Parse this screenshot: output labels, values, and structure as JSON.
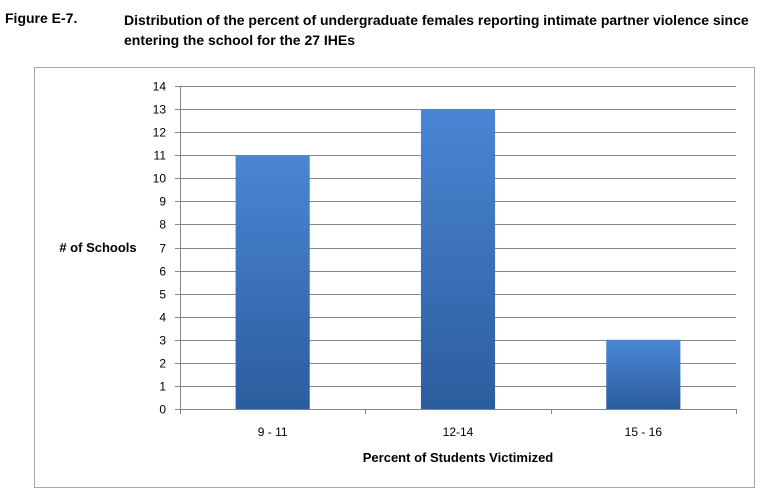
{
  "figure": {
    "label": "Figure E-7.",
    "caption": "Distribution of the percent of undergraduate females reporting intimate partner violence since entering the school for the 27 IHEs"
  },
  "chart_data": {
    "type": "bar",
    "categories": [
      "9 - 11",
      "12-14",
      "15 - 16"
    ],
    "values": [
      11,
      13,
      3
    ],
    "xlabel": "Percent of Students Victimized",
    "ylabel": "# of Schools",
    "ylim": [
      0,
      14
    ],
    "yticks": [
      0,
      1,
      2,
      3,
      4,
      5,
      6,
      7,
      8,
      9,
      10,
      11,
      12,
      13,
      14
    ],
    "grid": true,
    "legend": "none",
    "colors": {
      "bar_light": "#4a86d4",
      "bar_dark": "#2c5d9e",
      "grid": "#868686",
      "axis": "#868686"
    }
  }
}
